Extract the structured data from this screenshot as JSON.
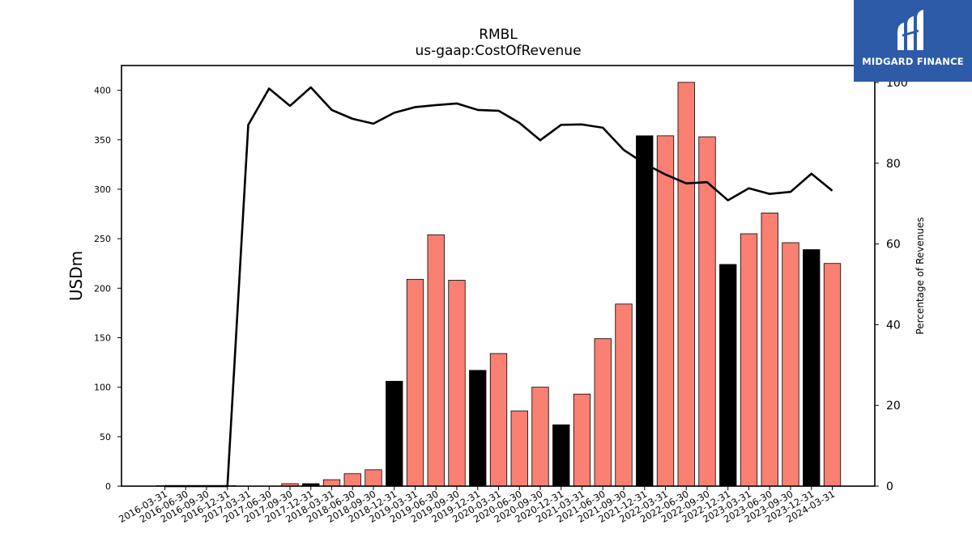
{
  "logo": {
    "text": "MIDGARD FINANCE"
  },
  "chart_data": {
    "type": "bar",
    "title": "RMBL",
    "subtitle": "us-gaap:CostOfRevenue",
    "ylabel": "USDm",
    "y2label": "Percentage of Revenues",
    "ylim": [
      0,
      425
    ],
    "y2lim": [
      0,
      104.2
    ],
    "yticks": [
      0,
      50,
      100,
      150,
      200,
      250,
      300,
      350,
      400
    ],
    "y2ticks": [
      0,
      20,
      40,
      60,
      80,
      100
    ],
    "categories": [
      "2016-03-31",
      "2016-06-30",
      "2016-09-30",
      "2016-12-31",
      "2017-03-31",
      "2017-06-30",
      "2017-09-30",
      "2017-12-31",
      "2018-03-31",
      "2018-06-30",
      "2018-09-30",
      "2018-12-31",
      "2019-03-31",
      "2019-06-30",
      "2019-09-30",
      "2019-12-31",
      "2020-03-31",
      "2020-06-30",
      "2020-09-30",
      "2020-12-31",
      "2021-03-31",
      "2021-06-30",
      "2021-09-30",
      "2021-12-31",
      "2022-03-31",
      "2022-06-30",
      "2022-09-30",
      "2022-12-31",
      "2023-03-31",
      "2023-06-30",
      "2023-09-30",
      "2023-12-31",
      "2024-03-31"
    ],
    "series": [
      {
        "type": "bar",
        "values": [
          0.5,
          0.5,
          0.5,
          0.5,
          0,
          0,
          2.5,
          2.5,
          6.5,
          12.5,
          16.5,
          106,
          209,
          254,
          208,
          117,
          134,
          76,
          100,
          62,
          93,
          149,
          184,
          354,
          354,
          408,
          353,
          224,
          255,
          276,
          246,
          239,
          225
        ],
        "fiscal_year_end": [
          false,
          false,
          false,
          true,
          false,
          false,
          false,
          true,
          false,
          false,
          false,
          true,
          false,
          false,
          false,
          true,
          false,
          false,
          false,
          true,
          false,
          false,
          false,
          true,
          false,
          false,
          false,
          true,
          false,
          false,
          false,
          true,
          false
        ]
      },
      {
        "type": "line",
        "axis": "right",
        "values": [
          0,
          0,
          0,
          0,
          89.5,
          98.5,
          94.2,
          98.8,
          93.2,
          91.0,
          89.8,
          92.5,
          93.9,
          94.4,
          94.8,
          93.2,
          93.0,
          90.0,
          85.7,
          89.5,
          89.6,
          88.8,
          83.3,
          79.9,
          77.2,
          75.0,
          75.3,
          70.8,
          73.8,
          72.4,
          72.9,
          77.4,
          73.2
        ]
      }
    ],
    "colors": {
      "bar": "#fa8072",
      "bar_fiscal_year_end": "#000000",
      "line": "#000000"
    },
    "grid": false,
    "legend": "none"
  }
}
